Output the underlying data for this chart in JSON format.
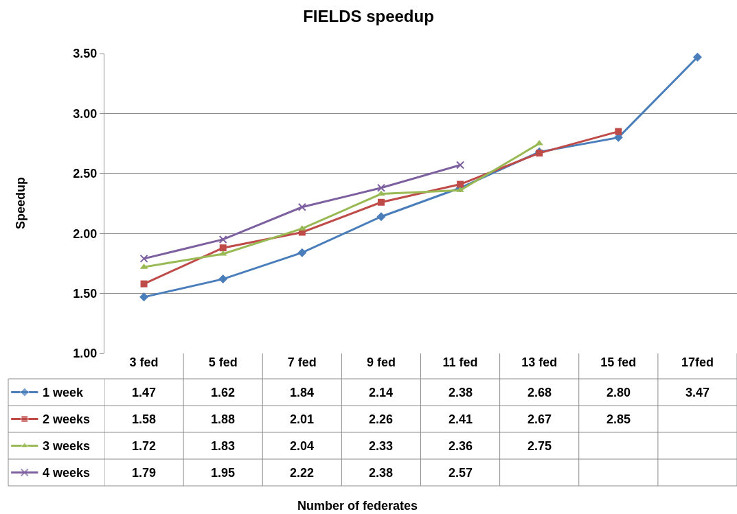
{
  "chart_data": {
    "type": "line",
    "title": "FIELDS speedup",
    "annotations": [
      "Number of federates"
    ],
    "ylabel": "Speedup",
    "categories": [
      "3 fed",
      "5 fed",
      "7 fed",
      "9 fed",
      "11 fed",
      "13 fed",
      "15 fed",
      "17fed"
    ],
    "series": [
      {
        "name": "1 week",
        "color": "#4a7ebb",
        "marker": "diamond",
        "values": [
          1.47,
          1.62,
          1.84,
          2.14,
          2.38,
          2.68,
          2.8,
          3.47
        ],
        "value_labels": [
          "1.47",
          "1.62",
          "1.84",
          "2.14",
          "2.38",
          "2.68",
          "2.80",
          "3.47"
        ]
      },
      {
        "name": "2 weeks",
        "color": "#be4b48",
        "marker": "square",
        "values": [
          1.58,
          1.88,
          2.01,
          2.26,
          2.41,
          2.67,
          2.85,
          null
        ]
      },
      {
        "name": "3 weeks",
        "color": "#98b954",
        "marker": "triangle",
        "values": [
          1.72,
          1.83,
          2.04,
          2.33,
          2.36,
          2.75,
          null,
          null
        ]
      },
      {
        "name": "4 weeks",
        "color": "#7d60a0",
        "marker": "cross",
        "values": [
          1.79,
          1.95,
          2.22,
          2.38,
          2.57,
          null,
          null,
          null
        ]
      }
    ],
    "ylim": [
      1.0,
      3.5
    ],
    "yticks": [
      {
        "value": 1.0,
        "label": "1.00"
      },
      {
        "value": 1.5,
        "label": "1.50"
      },
      {
        "value": 2.0,
        "label": "2.00"
      },
      {
        "value": 2.5,
        "label": "2.50"
      },
      {
        "value": 3.0,
        "label": "3.00"
      },
      {
        "value": 3.5,
        "label": "3.50"
      }
    ],
    "grid": "y",
    "line_style": "solid",
    "data_labels": true,
    "legend": "bottom left"
  }
}
